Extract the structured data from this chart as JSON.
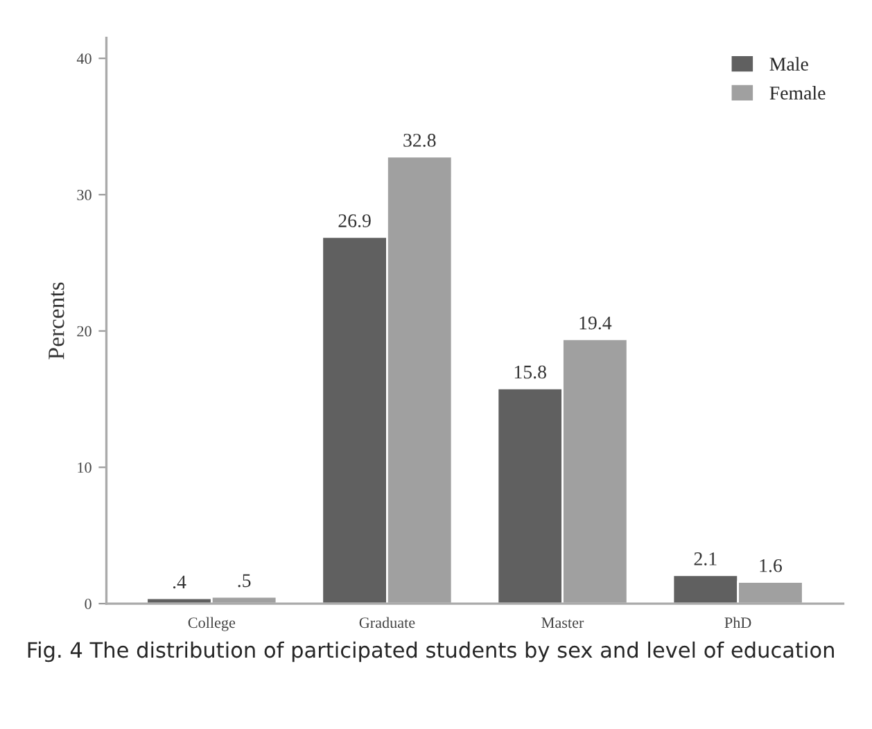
{
  "chart_data": {
    "type": "bar",
    "ylabel": "Percents",
    "categories": [
      "College",
      "Graduate",
      "Master",
      "PhD"
    ],
    "series": [
      {
        "name": "Male",
        "color": "#606060",
        "values": [
          0.4,
          26.9,
          15.8,
          2.1
        ],
        "value_labels": [
          ".4",
          "26.9",
          "15.8",
          "2.1"
        ]
      },
      {
        "name": "Female",
        "color": "#a0a0a0",
        "values": [
          0.5,
          32.8,
          19.4,
          1.6
        ],
        "value_labels": [
          ".5",
          "32.8",
          "19.4",
          "1.6"
        ]
      }
    ],
    "ylim": [
      0,
      41.5
    ],
    "yticks": [
      0,
      10,
      20,
      30,
      40
    ],
    "grid": false,
    "legend": "top right",
    "annotations": [
      "Fig. 4 The distribution of participated students by sex and level of education"
    ]
  }
}
